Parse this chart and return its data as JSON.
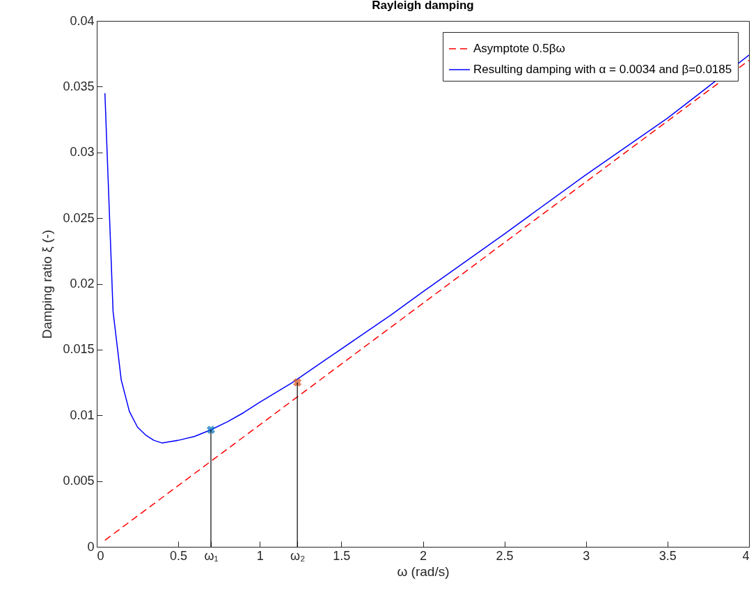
{
  "chart_data": {
    "type": "line",
    "title": "Rayleigh damping",
    "xlabel": "ω (rad/s)",
    "ylabel": "Damping ratio ξ (-)",
    "xlim": [
      0,
      4
    ],
    "ylim": [
      0,
      0.04
    ],
    "xticks": [
      0,
      0.5,
      {
        "value": 0.7,
        "label": "ω₁"
      },
      1,
      {
        "value": 1.23,
        "label": "ω₂"
      },
      1.5,
      2,
      2.5,
      3,
      3.5,
      4
    ],
    "yticks": [
      0,
      0.005,
      0.01,
      0.015,
      0.02,
      0.025,
      0.03,
      0.035,
      0.04
    ],
    "legend": "top right",
    "series": [
      {
        "name": "Asymptote 0.5βω",
        "color": "#ff0000",
        "line_style": "dashed",
        "x": [
          0.05,
          4
        ],
        "values": [
          0.0005,
          0.037
        ]
      },
      {
        "name": "Resulting damping with α = 0.0034 and β=0.0185",
        "color": "#0000ff",
        "line_style": "solid",
        "x": [
          0.05,
          0.1,
          0.15,
          0.2,
          0.25,
          0.3,
          0.35,
          0.4,
          0.45,
          0.5,
          0.6,
          0.7,
          0.8,
          0.9,
          1.0,
          1.2,
          1.4,
          1.6,
          1.8,
          2.0,
          2.5,
          3.0,
          3.5,
          4.0
        ],
        "values": [
          0.0345,
          0.0179,
          0.0127,
          0.0103,
          0.0091,
          0.0085,
          0.0081,
          0.0079,
          0.008,
          0.0081,
          0.0084,
          0.0089,
          0.0095,
          0.0102,
          0.011,
          0.0125,
          0.0142,
          0.0159,
          0.0176,
          0.0194,
          0.0238,
          0.0283,
          0.0326,
          0.0374
        ]
      },
      {
        "type": "scatter",
        "marker": "cross",
        "color": "#0072bd",
        "x": [
          0.7
        ],
        "values": [
          0.0089
        ]
      },
      {
        "type": "scatter",
        "marker": "cross",
        "color": "#d95319",
        "x": [
          1.23
        ],
        "values": [
          0.0125
        ]
      },
      {
        "color": "#000000",
        "line_style": "solid",
        "x": [
          0.7,
          0.7
        ],
        "values": [
          0,
          0.0089
        ]
      },
      {
        "color": "#000000",
        "line_style": "solid",
        "x": [
          1.23,
          1.23
        ],
        "values": [
          0,
          0.0125
        ]
      }
    ]
  }
}
